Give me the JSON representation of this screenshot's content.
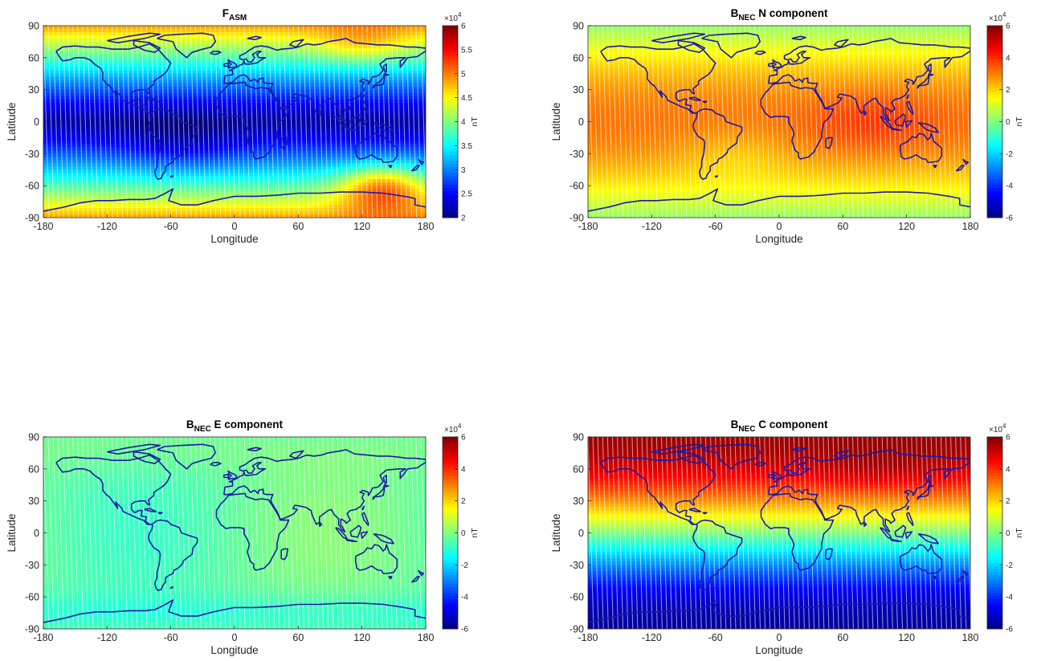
{
  "chart_data": [
    {
      "type": "heatmap",
      "title": "F",
      "title_sub": "ASM",
      "title_rest": "",
      "xlabel": "Longitude",
      "ylabel": "Latitude",
      "xlim": [
        -180,
        180
      ],
      "ylim": [
        -90,
        90
      ],
      "xticks": [
        -180,
        -120,
        -60,
        0,
        60,
        120,
        180
      ],
      "yticks": [
        -90,
        -60,
        -30,
        0,
        30,
        60,
        90
      ],
      "colorbar": {
        "label": "nT",
        "exponent": "×10",
        "exponent_power": "4",
        "clim": [
          2,
          6
        ],
        "ticks": [
          "2",
          "2.5",
          "3",
          "3.5",
          "4",
          "4.5",
          "5",
          "5.5",
          "6"
        ],
        "colormap": "jet"
      },
      "colorbar_ticks_values": [
        2,
        2.5,
        3,
        3.5,
        4,
        4.5,
        5,
        5.5,
        6
      ],
      "field_profile": "total_intensity",
      "overlay": "coastlines",
      "coastline_color": "#1a1aa6"
    },
    {
      "type": "heatmap",
      "title": "B",
      "title_sub": "NEC",
      "title_rest": " N component",
      "xlabel": "Longitude",
      "ylabel": "Latitude",
      "xlim": [
        -180,
        180
      ],
      "ylim": [
        -90,
        90
      ],
      "xticks": [
        -180,
        -120,
        -60,
        0,
        60,
        120,
        180
      ],
      "yticks": [
        -90,
        -60,
        -30,
        0,
        30,
        60,
        90
      ],
      "colorbar": {
        "label": "nT",
        "exponent": "×10",
        "exponent_power": "4",
        "clim": [
          -6,
          6
        ],
        "ticks": [
          "-6",
          "-4",
          "-2",
          "0",
          "2",
          "4",
          "6"
        ],
        "colormap": "jet"
      },
      "colorbar_ticks_values": [
        -6,
        -4,
        -2,
        0,
        2,
        4,
        6
      ],
      "field_profile": "north",
      "overlay": "coastlines",
      "coastline_color": "#1a1aa6"
    },
    {
      "type": "heatmap",
      "title": "B",
      "title_sub": "NEC",
      "title_rest": " E component",
      "xlabel": "Longitude",
      "ylabel": "Latitude",
      "xlim": [
        -180,
        180
      ],
      "ylim": [
        -90,
        90
      ],
      "xticks": [
        -180,
        -120,
        -60,
        0,
        60,
        120,
        180
      ],
      "yticks": [
        -90,
        -60,
        -30,
        0,
        30,
        60,
        90
      ],
      "colorbar": {
        "label": "nT",
        "exponent": "×10",
        "exponent_power": "4",
        "clim": [
          -6,
          6
        ],
        "ticks": [
          "-6",
          "-4",
          "-2",
          "0",
          "2",
          "4",
          "6"
        ],
        "colormap": "jet"
      },
      "colorbar_ticks_values": [
        -6,
        -4,
        -2,
        0,
        2,
        4,
        6
      ],
      "field_profile": "east",
      "overlay": "coastlines",
      "coastline_color": "#1a1aa6"
    },
    {
      "type": "heatmap",
      "title": "B",
      "title_sub": "NEC",
      "title_rest": " C component",
      "xlabel": "Longitude",
      "ylabel": "Latitude",
      "xlim": [
        -180,
        180
      ],
      "ylim": [
        -90,
        90
      ],
      "xticks": [
        -180,
        -120,
        -60,
        0,
        60,
        120,
        180
      ],
      "yticks": [
        -90,
        -60,
        -30,
        0,
        30,
        60,
        90
      ],
      "colorbar": {
        "label": "nT",
        "exponent": "×10",
        "exponent_power": "4",
        "clim": [
          -6,
          6
        ],
        "ticks": [
          "-6",
          "-4",
          "-2",
          "0",
          "2",
          "4",
          "6"
        ],
        "colormap": "jet"
      },
      "colorbar_ticks_values": [
        -6,
        -4,
        -2,
        0,
        2,
        4,
        6
      ],
      "field_profile": "center",
      "overlay": "coastlines",
      "coastline_color": "#1a1aa6"
    }
  ]
}
